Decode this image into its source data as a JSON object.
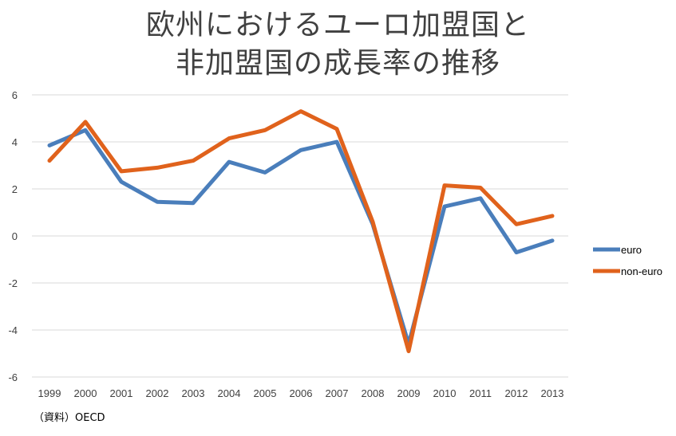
{
  "chart_data": {
    "type": "line",
    "title_lines": [
      "欧州におけるユーロ加盟国と",
      "非加盟国の成長率の推移"
    ],
    "xlabel": "",
    "ylabel": "",
    "categories": [
      "1999",
      "2000",
      "2001",
      "2002",
      "2003",
      "2004",
      "2005",
      "2006",
      "2007",
      "2008",
      "2009",
      "2010",
      "2011",
      "2012",
      "2013"
    ],
    "ylim": [
      -6,
      6
    ],
    "yticks": [
      6,
      4,
      2,
      0,
      -2,
      -4,
      -6
    ],
    "grid": true,
    "legend_position": "right",
    "series": [
      {
        "name": "euro",
        "color": "#4a7ebb",
        "values": [
          3.85,
          4.5,
          2.3,
          1.45,
          1.4,
          3.15,
          2.7,
          3.65,
          4.0,
          0.5,
          -4.6,
          1.25,
          1.6,
          -0.7,
          -0.2
        ]
      },
      {
        "name": "non-euro",
        "color": "#e0621c",
        "values": [
          3.2,
          4.85,
          2.75,
          2.9,
          3.2,
          4.15,
          4.5,
          5.3,
          4.55,
          0.6,
          -4.9,
          2.15,
          2.05,
          0.5,
          0.85
        ]
      }
    ]
  },
  "source_note": "（資料）OECD"
}
